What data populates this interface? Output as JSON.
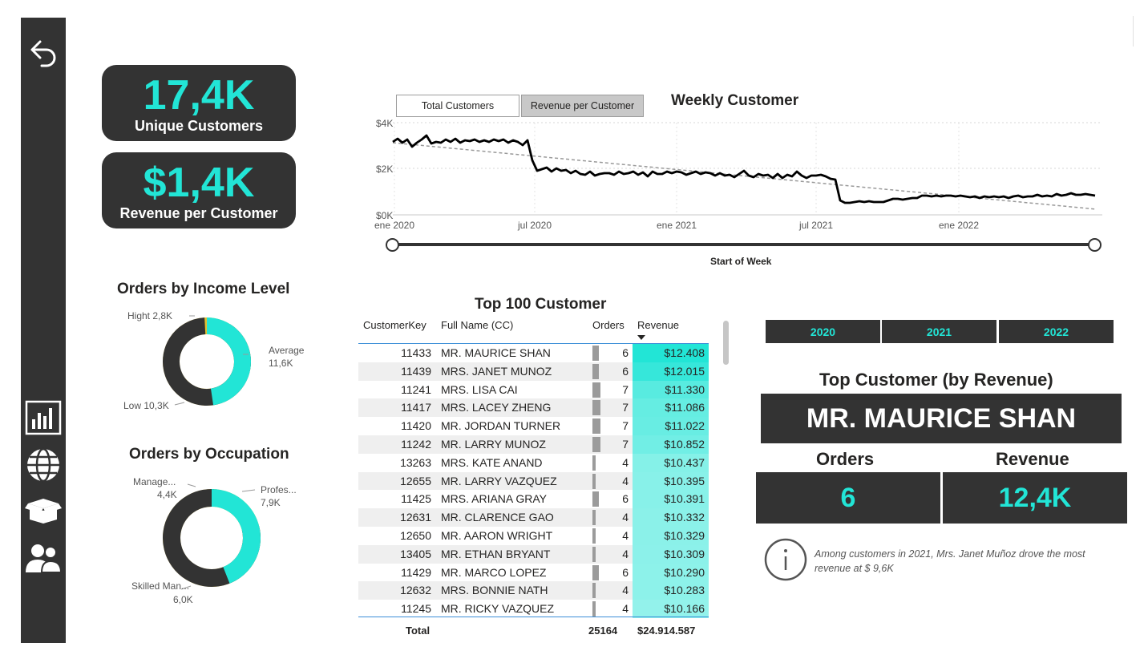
{
  "kpis": [
    {
      "value": "17,4K",
      "label": "Unique Customers"
    },
    {
      "value": "$1,4K",
      "label": "Revenue per Customer"
    }
  ],
  "colors": {
    "accent": "#22e5d6",
    "dark": "#333333",
    "gold": "#e3c031"
  },
  "weekly_chart": {
    "title": "Weekly Customer",
    "toggles": [
      {
        "label": "Total Customers",
        "active": false
      },
      {
        "label": "Revenue per Customer",
        "active": true
      }
    ],
    "y_ticks": [
      "$4K",
      "$2K",
      "$0K"
    ],
    "x_ticks": [
      "ene 2020",
      "jul 2020",
      "ene 2021",
      "jul 2021",
      "ene 2022"
    ],
    "slider_label": "Start of Week"
  },
  "income_chart": {
    "title": "Orders by Income Level",
    "slices": [
      {
        "name": "Average",
        "value": "11,6K",
        "label": "Average\n11,6K"
      },
      {
        "name": "Low",
        "value": "10,3K",
        "label": "Low 10,3K"
      },
      {
        "name": "Hight",
        "value": "2,8K",
        "label": "Hight 2,8K"
      }
    ]
  },
  "occupation_chart": {
    "title": "Orders by Occupation",
    "slices": [
      {
        "name": "Profes...",
        "value": "7,9K"
      },
      {
        "name": "Skilled Man...",
        "value": "6,0K"
      },
      {
        "name": "Manage...",
        "value": "4,4K"
      }
    ]
  },
  "top_table": {
    "title": "Top 100 Customer",
    "headers": [
      "CustomerKey",
      "Full Name (CC)",
      "Orders",
      "Revenue"
    ],
    "rows": [
      {
        "key": "11433",
        "name": "MR. MAURICE SHAN",
        "orders": "6",
        "revenue": "$12.408"
      },
      {
        "key": "11439",
        "name": "MRS. JANET MUNOZ",
        "orders": "6",
        "revenue": "$12.015"
      },
      {
        "key": "11241",
        "name": "MRS. LISA CAI",
        "orders": "7",
        "revenue": "$11.330"
      },
      {
        "key": "11417",
        "name": "MRS. LACEY ZHENG",
        "orders": "7",
        "revenue": "$11.086"
      },
      {
        "key": "11420",
        "name": "MR. JORDAN TURNER",
        "orders": "7",
        "revenue": "$11.022"
      },
      {
        "key": "11242",
        "name": "MR. LARRY MUNOZ",
        "orders": "7",
        "revenue": "$10.852"
      },
      {
        "key": "13263",
        "name": "MRS. KATE ANAND",
        "orders": "4",
        "revenue": "$10.437"
      },
      {
        "key": "12655",
        "name": "MR. LARRY VAZQUEZ",
        "orders": "4",
        "revenue": "$10.395"
      },
      {
        "key": "11425",
        "name": "MRS. ARIANA GRAY",
        "orders": "6",
        "revenue": "$10.391"
      },
      {
        "key": "12631",
        "name": "MR. CLARENCE GAO",
        "orders": "4",
        "revenue": "$10.332"
      },
      {
        "key": "12650",
        "name": "MR. AARON WRIGHT",
        "orders": "4",
        "revenue": "$10.329"
      },
      {
        "key": "13405",
        "name": "MR. ETHAN BRYANT",
        "orders": "4",
        "revenue": "$10.309"
      },
      {
        "key": "11429",
        "name": "MR. MARCO LOPEZ",
        "orders": "6",
        "revenue": "$10.290"
      },
      {
        "key": "12632",
        "name": "MRS. BONNIE NATH",
        "orders": "4",
        "revenue": "$10.283"
      },
      {
        "key": "11245",
        "name": "MR. RICKY VAZQUEZ",
        "orders": "4",
        "revenue": "$10.166"
      }
    ],
    "total_label": "Total",
    "total_orders": "25164",
    "total_revenue": "$24.914.587"
  },
  "years": [
    "2020",
    "2021",
    "2022"
  ],
  "top_customer": {
    "title": "Top Customer (by Revenue)",
    "name": "MR. MAURICE SHAN",
    "orders_label": "Orders",
    "revenue_label": "Revenue",
    "orders_value": "6",
    "revenue_value": "12,4K"
  },
  "info_note": "Among customers in 2021, Mrs. Janet Muñoz drove the most revenue at $ 9,6K",
  "icons": [
    "back-arrow-icon",
    "bar-chart-icon",
    "globe-icon",
    "box-icon",
    "users-icon",
    "info-icon"
  ]
}
